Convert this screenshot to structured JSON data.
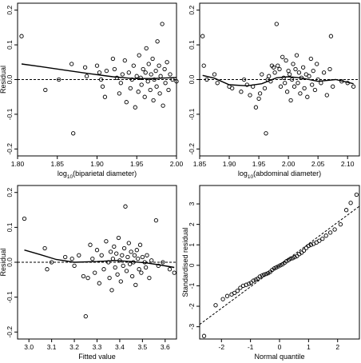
{
  "chart_data": [
    {
      "type": "scatter",
      "xlabel": "log",
      "xlabel_sub": "10",
      "xlabel_rest": "(biparietal diameter)",
      "ylabel": "Residual",
      "xlim": [
        1.8,
        2.0
      ],
      "ylim": [
        -0.22,
        0.22
      ],
      "xticks": [
        "1.80",
        "1.85",
        "1.90",
        "1.95",
        "2.00"
      ],
      "yticks": [
        "-0.2",
        "-0.1",
        "0.0",
        "0.1",
        "0.2"
      ],
      "reference_line": {
        "y": 0,
        "style": "dashed"
      },
      "smooth": [
        [
          1.805,
          0.045
        ],
        [
          1.83,
          0.037
        ],
        [
          1.86,
          0.027
        ],
        [
          1.89,
          0.017
        ],
        [
          1.92,
          0.008
        ],
        [
          1.945,
          0.003
        ],
        [
          1.97,
          0.003
        ],
        [
          2.0,
          0.006
        ]
      ],
      "points": [
        [
          1.805,
          0.125
        ],
        [
          1.835,
          -0.03
        ],
        [
          1.852,
          0.0
        ],
        [
          1.868,
          0.045
        ],
        [
          1.87,
          -0.155
        ],
        [
          1.885,
          0.035
        ],
        [
          1.887,
          0.01
        ],
        [
          1.9,
          0.04
        ],
        [
          1.903,
          0.02
        ],
        [
          1.905,
          0.0
        ],
        [
          1.907,
          -0.02
        ],
        [
          1.91,
          -0.05
        ],
        [
          1.912,
          0.025
        ],
        [
          1.92,
          0.06
        ],
        [
          1.922,
          0.03
        ],
        [
          1.925,
          0.005
        ],
        [
          1.928,
          -0.04
        ],
        [
          1.93,
          -0.01
        ],
        [
          1.932,
          0.015
        ],
        [
          1.935,
          0.055
        ],
        [
          1.937,
          -0.065
        ],
        [
          1.94,
          0.02
        ],
        [
          1.942,
          -0.025
        ],
        [
          1.944,
          0.0
        ],
        [
          1.946,
          0.04
        ],
        [
          1.948,
          -0.08
        ],
        [
          1.95,
          0.01
        ],
        [
          1.952,
          -0.035
        ],
        [
          1.953,
          0.07
        ],
        [
          1.955,
          0.005
        ],
        [
          1.956,
          -0.015
        ],
        [
          1.958,
          0.03
        ],
        [
          1.96,
          -0.05
        ],
        [
          1.961,
          0.02
        ],
        [
          1.962,
          0.09
        ],
        [
          1.964,
          -0.005
        ],
        [
          1.965,
          0.045
        ],
        [
          1.967,
          -0.03
        ],
        [
          1.968,
          0.015
        ],
        [
          1.97,
          0.06
        ],
        [
          1.971,
          -0.06
        ],
        [
          1.972,
          0.0
        ],
        [
          1.974,
          0.025
        ],
        [
          1.975,
          -0.02
        ],
        [
          1.976,
          0.11
        ],
        [
          1.978,
          0.04
        ],
        [
          1.979,
          -0.04
        ],
        [
          1.98,
          0.01
        ],
        [
          1.982,
          0.16
        ],
        [
          1.983,
          -0.075
        ],
        [
          1.985,
          0.03
        ],
        [
          1.986,
          -0.01
        ],
        [
          1.988,
          0.05
        ],
        [
          1.99,
          -0.03
        ],
        [
          1.992,
          0.015
        ],
        [
          1.995,
          0.0
        ],
        [
          2.0,
          -0.005
        ]
      ]
    },
    {
      "type": "scatter",
      "xlabel": "log",
      "xlabel_sub": "10",
      "xlabel_rest": "(abdominal diameter)",
      "ylabel": "",
      "xlim": [
        1.85,
        2.12
      ],
      "ylim": [
        -0.22,
        0.22
      ],
      "xticks": [
        "1.85",
        "1.90",
        "1.95",
        "2.00",
        "2.05",
        "2.10"
      ],
      "yticks": [
        "-0.2",
        "-0.1",
        "0.0",
        "0.1",
        "0.2"
      ],
      "reference_line": {
        "y": 0,
        "style": "dashed"
      },
      "smooth": [
        [
          1.855,
          0.012
        ],
        [
          1.875,
          0.004
        ],
        [
          1.9,
          -0.015
        ],
        [
          1.93,
          -0.018
        ],
        [
          1.955,
          -0.012
        ],
        [
          1.98,
          0.005
        ],
        [
          2.0,
          0.008
        ],
        [
          2.02,
          0.005
        ],
        [
          2.05,
          -0.005
        ],
        [
          2.08,
          0.0
        ],
        [
          2.11,
          -0.012
        ]
      ],
      "points": [
        [
          1.855,
          0.125
        ],
        [
          1.857,
          0.04
        ],
        [
          1.862,
          0.0
        ],
        [
          1.875,
          0.015
        ],
        [
          1.88,
          -0.01
        ],
        [
          1.9,
          -0.02
        ],
        [
          1.905,
          -0.025
        ],
        [
          1.92,
          -0.035
        ],
        [
          1.925,
          0.0
        ],
        [
          1.93,
          -0.015
        ],
        [
          1.935,
          -0.045
        ],
        [
          1.94,
          -0.02
        ],
        [
          1.945,
          -0.08
        ],
        [
          1.95,
          -0.055
        ],
        [
          1.952,
          -0.04
        ],
        [
          1.955,
          0.015
        ],
        [
          1.96,
          -0.025
        ],
        [
          1.962,
          -0.155
        ],
        [
          1.965,
          0.0
        ],
        [
          1.967,
          0.01
        ],
        [
          1.97,
          -0.005
        ],
        [
          1.972,
          0.04
        ],
        [
          1.975,
          0.035
        ],
        [
          1.977,
          0.02
        ],
        [
          1.98,
          0.16
        ],
        [
          1.982,
          0.04
        ],
        [
          1.985,
          0.03
        ],
        [
          1.987,
          -0.02
        ],
        [
          1.99,
          0.065
        ],
        [
          1.992,
          0.005
        ],
        [
          1.994,
          -0.01
        ],
        [
          1.996,
          0.055
        ],
        [
          1.998,
          -0.035
        ],
        [
          2.0,
          0.025
        ],
        [
          2.002,
          0.015
        ],
        [
          2.004,
          -0.06
        ],
        [
          2.006,
          0.0
        ],
        [
          2.008,
          0.045
        ],
        [
          2.01,
          -0.02
        ],
        [
          2.012,
          0.03
        ],
        [
          2.014,
          0.07
        ],
        [
          2.016,
          -0.01
        ],
        [
          2.018,
          0.02
        ],
        [
          2.02,
          -0.04
        ],
        [
          2.022,
          0.005
        ],
        [
          2.025,
          0.035
        ],
        [
          2.027,
          -0.025
        ],
        [
          2.03,
          0.015
        ],
        [
          2.032,
          -0.05
        ],
        [
          2.035,
          0.01
        ],
        [
          2.038,
          0.06
        ],
        [
          2.04,
          -0.015
        ],
        [
          2.042,
          0.025
        ],
        [
          2.045,
          -0.03
        ],
        [
          2.048,
          0.045
        ],
        [
          2.05,
          0.0
        ],
        [
          2.055,
          -0.01
        ],
        [
          2.06,
          0.02
        ],
        [
          2.065,
          -0.045
        ],
        [
          2.07,
          0.03
        ],
        [
          2.072,
          0.125
        ],
        [
          2.075,
          -0.02
        ],
        [
          2.09,
          -0.005
        ],
        [
          2.1,
          -0.01
        ],
        [
          2.11,
          -0.02
        ]
      ]
    },
    {
      "type": "scatter",
      "xlabel": "Fitted value",
      "ylabel": "Residual",
      "xlim": [
        2.95,
        3.65
      ],
      "ylim": [
        -0.22,
        0.22
      ],
      "xticks": [
        "3.0",
        "3.1",
        "3.2",
        "3.3",
        "3.4",
        "3.5",
        "3.6"
      ],
      "yticks": [
        "-0.2",
        "-0.1",
        "0.0",
        "0.1",
        "0.2"
      ],
      "reference_line": {
        "y": 0,
        "style": "dashed"
      },
      "smooth": [
        [
          2.98,
          0.035
        ],
        [
          3.05,
          0.022
        ],
        [
          3.12,
          0.008
        ],
        [
          3.2,
          0.0
        ],
        [
          3.3,
          0.002
        ],
        [
          3.38,
          0.005
        ],
        [
          3.45,
          0.002
        ],
        [
          3.52,
          -0.002
        ],
        [
          3.58,
          -0.008
        ],
        [
          3.64,
          -0.015
        ]
      ],
      "points": [
        [
          2.98,
          0.125
        ],
        [
          3.07,
          0.04
        ],
        [
          3.08,
          -0.02
        ],
        [
          3.1,
          0.0
        ],
        [
          3.16,
          0.015
        ],
        [
          3.19,
          0.01
        ],
        [
          3.2,
          -0.01
        ],
        [
          3.22,
          0.02
        ],
        [
          3.24,
          -0.04
        ],
        [
          3.25,
          -0.155
        ],
        [
          3.26,
          -0.045
        ],
        [
          3.27,
          0.05
        ],
        [
          3.28,
          0.01
        ],
        [
          3.29,
          -0.03
        ],
        [
          3.3,
          0.035
        ],
        [
          3.31,
          -0.06
        ],
        [
          3.32,
          0.02
        ],
        [
          3.33,
          -0.02
        ],
        [
          3.34,
          0.06
        ],
        [
          3.35,
          0.0
        ],
        [
          3.355,
          -0.045
        ],
        [
          3.36,
          0.03
        ],
        [
          3.365,
          -0.08
        ],
        [
          3.37,
          0.01
        ],
        [
          3.375,
          0.045
        ],
        [
          3.38,
          -0.015
        ],
        [
          3.385,
          0.025
        ],
        [
          3.39,
          -0.035
        ],
        [
          3.395,
          0.07
        ],
        [
          3.4,
          0.005
        ],
        [
          3.405,
          -0.055
        ],
        [
          3.41,
          0.02
        ],
        [
          3.415,
          -0.01
        ],
        [
          3.42,
          0.04
        ],
        [
          3.425,
          0.16
        ],
        [
          3.43,
          -0.025
        ],
        [
          3.435,
          0.015
        ],
        [
          3.44,
          0.055
        ],
        [
          3.445,
          -0.005
        ],
        [
          3.45,
          0.03
        ],
        [
          3.455,
          -0.04
        ],
        [
          3.46,
          0.0
        ],
        [
          3.465,
          0.02
        ],
        [
          3.47,
          -0.065
        ],
        [
          3.475,
          0.035
        ],
        [
          3.48,
          0.01
        ],
        [
          3.485,
          -0.02
        ],
        [
          3.49,
          0.05
        ],
        [
          3.495,
          -0.03
        ],
        [
          3.5,
          0.015
        ],
        [
          3.51,
          0.0
        ],
        [
          3.515,
          -0.015
        ],
        [
          3.52,
          0.02
        ],
        [
          3.53,
          -0.045
        ],
        [
          3.54,
          0.005
        ],
        [
          3.56,
          0.12
        ],
        [
          3.57,
          -0.01
        ],
        [
          3.59,
          0.0
        ],
        [
          3.62,
          -0.02
        ],
        [
          3.64,
          -0.03
        ]
      ]
    },
    {
      "type": "scatter",
      "xlabel": "Normal quantile",
      "ylabel": "Standardised residual",
      "xlim": [
        -2.75,
        2.75
      ],
      "ylim": [
        -3.6,
        3.9
      ],
      "xticks": [
        "-2",
        "-1",
        "0",
        "1",
        "2"
      ],
      "yticks": [
        "-3",
        "-2",
        "-1",
        "0",
        "1",
        "2",
        "3"
      ],
      "reference_line": {
        "type": "diagonal",
        "style": "dashed",
        "intercept": 0,
        "slope": 1.05
      },
      "points": [
        [
          -2.6,
          -3.45
        ],
        [
          -2.2,
          -1.95
        ],
        [
          -1.95,
          -1.65
        ],
        [
          -1.8,
          -1.5
        ],
        [
          -1.65,
          -1.42
        ],
        [
          -1.55,
          -1.35
        ],
        [
          -1.45,
          -1.25
        ],
        [
          -1.35,
          -1.1
        ],
        [
          -1.25,
          -1.0
        ],
        [
          -1.15,
          -0.95
        ],
        [
          -1.05,
          -0.9
        ],
        [
          -0.98,
          -0.85
        ],
        [
          -0.9,
          -0.75
        ],
        [
          -0.82,
          -0.7
        ],
        [
          -0.75,
          -0.65
        ],
        [
          -0.68,
          -0.55
        ],
        [
          -0.6,
          -0.5
        ],
        [
          -0.53,
          -0.45
        ],
        [
          -0.46,
          -0.42
        ],
        [
          -0.39,
          -0.38
        ],
        [
          -0.32,
          -0.32
        ],
        [
          -0.25,
          -0.22
        ],
        [
          -0.18,
          -0.15
        ],
        [
          -0.11,
          -0.1
        ],
        [
          -0.04,
          -0.05
        ],
        [
          0.03,
          0.0
        ],
        [
          0.1,
          0.05
        ],
        [
          0.17,
          0.12
        ],
        [
          0.24,
          0.2
        ],
        [
          0.31,
          0.26
        ],
        [
          0.38,
          0.32
        ],
        [
          0.45,
          0.35
        ],
        [
          0.52,
          0.4
        ],
        [
          0.6,
          0.45
        ],
        [
          0.68,
          0.55
        ],
        [
          0.76,
          0.62
        ],
        [
          0.84,
          0.72
        ],
        [
          0.92,
          0.85
        ],
        [
          1.0,
          0.95
        ],
        [
          1.08,
          1.0
        ],
        [
          1.17,
          1.05
        ],
        [
          1.27,
          1.12
        ],
        [
          1.37,
          1.2
        ],
        [
          1.48,
          1.3
        ],
        [
          1.6,
          1.45
        ],
        [
          1.75,
          1.6
        ],
        [
          1.9,
          1.75
        ],
        [
          2.1,
          2.0
        ],
        [
          2.3,
          2.7
        ],
        [
          2.45,
          3.05
        ],
        [
          2.65,
          3.45
        ]
      ]
    }
  ]
}
